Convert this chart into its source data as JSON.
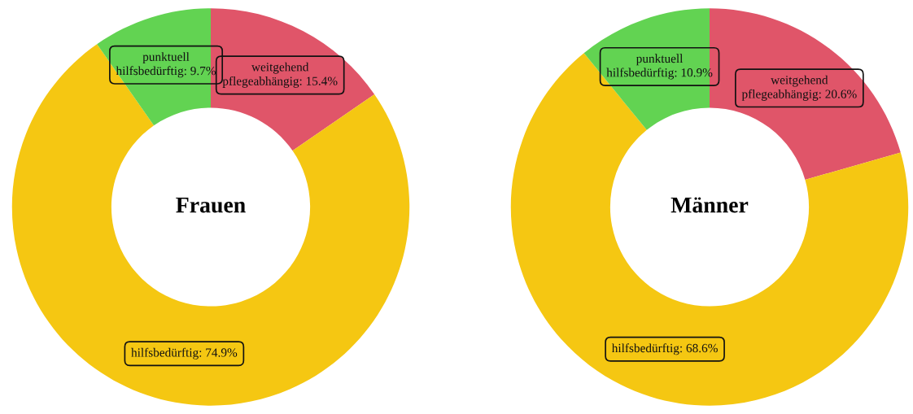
{
  "chart_data": [
    {
      "type": "donut",
      "title": "Frauen",
      "categories": [
        "weitgehend pflegeabhängig",
        "hilfsbedürftig",
        "punktuell hilfsbedürftig"
      ],
      "values": [
        15.4,
        74.9,
        9.7
      ],
      "colors": [
        "#e05569",
        "#f5c712",
        "#62d352"
      ],
      "value_labels": [
        "15.4%",
        "74.9%",
        "9.7%"
      ]
    },
    {
      "type": "donut",
      "title": "Männer",
      "categories": [
        "weitgehend pflegeabhängig",
        "hilfsbedürftig",
        "punktuell hilfsbedürftig"
      ],
      "values": [
        20.6,
        68.6,
        10.9
      ],
      "colors": [
        "#e05569",
        "#f5c712",
        "#62d352"
      ],
      "value_labels": [
        "20.6%",
        "68.6%",
        "10.9%"
      ]
    }
  ]
}
